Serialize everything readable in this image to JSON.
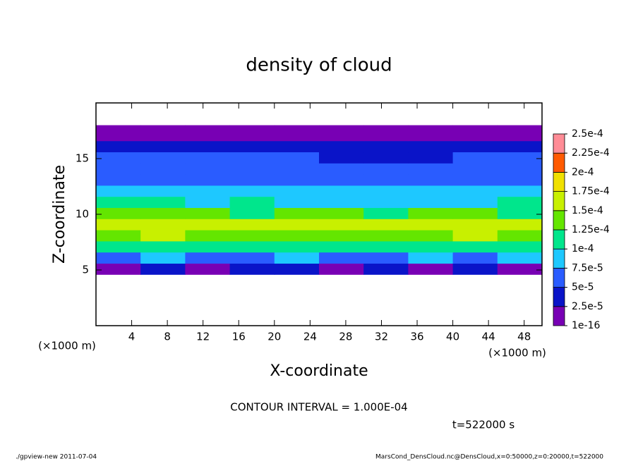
{
  "chart_data": {
    "type": "heatmap",
    "title": "density of cloud",
    "x_label": "X-coordinate",
    "y_label": "Z-coordinate",
    "x_unit_left": "(×1000 m)",
    "x_unit_right": "(×1000 m)",
    "contour_note": "CONTOUR INTERVAL = 1.000E-04",
    "time_note": "t=522000 s",
    "footer_left": "./gpview-new  2011-07-04",
    "footer_right": "MarsCond_DensCloud.nc@DensCloud,x=0:50000,z=0:20000,t=522000",
    "xlim": [
      0,
      50
    ],
    "ylim": [
      0,
      20
    ],
    "xticks": [
      4,
      8,
      12,
      16,
      20,
      24,
      28,
      32,
      36,
      40,
      44,
      48
    ],
    "yticks": [
      5,
      10,
      15
    ],
    "x_edges": [
      0,
      5,
      10,
      15,
      20,
      25,
      30,
      35,
      40,
      45,
      50
    ],
    "y_edges": [
      4.6,
      5.6,
      6.6,
      7.6,
      8.6,
      9.6,
      10.6,
      11.6,
      12.6,
      13.6,
      14.6,
      15.6,
      16.6,
      18
    ],
    "values": [
      [
        2e-05,
        3e-05,
        2e-05,
        3e-05,
        3e-05,
        2e-05,
        3e-05,
        2e-05,
        3e-05,
        2e-05
      ],
      [
        7e-05,
        8e-05,
        6e-05,
        7e-05,
        8e-05,
        7e-05,
        6e-05,
        8e-05,
        7e-05,
        8e-05
      ],
      [
        0.00011,
        0.00012,
        0.00011,
        0.0001,
        0.00011,
        0.00012,
        0.00011,
        0.0001,
        0.00011,
        0.00012
      ],
      [
        0.00014,
        0.00015,
        0.00014,
        0.00013,
        0.00014,
        0.00014,
        0.00013,
        0.00014,
        0.00015,
        0.00013
      ],
      [
        0.00016,
        0.00017,
        0.00016,
        0.00015,
        0.00015,
        0.00015,
        0.00015,
        0.00016,
        0.00017,
        0.00015
      ],
      [
        0.00013,
        0.00014,
        0.00013,
        0.00012,
        0.00013,
        0.00013,
        0.00012,
        0.00013,
        0.00013,
        0.00012
      ],
      [
        0.0001,
        0.000105,
        9e-05,
        0.0001,
        9e-05,
        8.5e-05,
        9e-05,
        9e-05,
        9.5e-05,
        0.0001
      ],
      [
        8.5e-05,
        8e-05,
        8e-05,
        8e-05,
        9e-05,
        8e-05,
        8e-05,
        8e-05,
        8e-05,
        8.5e-05
      ],
      [
        7e-05,
        7e-05,
        7e-05,
        6e-05,
        7e-05,
        6e-05,
        6e-05,
        6e-05,
        7e-05,
        7e-05
      ],
      [
        6e-05,
        6e-05,
        6e-05,
        5e-05,
        6e-05,
        5e-05,
        5e-05,
        5e-05,
        6e-05,
        6e-05
      ],
      [
        5e-05,
        6e-05,
        5e-05,
        5e-05,
        5e-05,
        4e-05,
        4e-05,
        4e-05,
        5e-05,
        5e-05
      ],
      [
        3e-05,
        3e-05,
        3e-05,
        3e-05,
        3e-05,
        3e-05,
        3e-05,
        3e-05,
        3e-05,
        3e-05
      ],
      [
        1e-05,
        1e-05,
        1e-05,
        1e-05,
        1e-05,
        1e-05,
        1e-05,
        1e-05,
        1e-05,
        1e-05
      ]
    ],
    "colorbar_ticks": [
      {
        "value": 1e-16,
        "label": "1e-16"
      },
      {
        "value": 2.5e-05,
        "label": "2.5e-5"
      },
      {
        "value": 5e-05,
        "label": "5e-5"
      },
      {
        "value": 7.5e-05,
        "label": "7.5e-5"
      },
      {
        "value": 0.0001,
        "label": "1e-4"
      },
      {
        "value": 0.000125,
        "label": "1.25e-4"
      },
      {
        "value": 0.00015,
        "label": "1.5e-4"
      },
      {
        "value": 0.000175,
        "label": "1.75e-4"
      },
      {
        "value": 0.0002,
        "label": "2e-4"
      },
      {
        "value": 0.000225,
        "label": "2.25e-4"
      },
      {
        "value": 0.00025,
        "label": "2.5e-4"
      }
    ],
    "colors": [
      "#7800b4",
      "#0a14c8",
      "#2a5cff",
      "#1ec8ff",
      "#00e68c",
      "#64e600",
      "#c8f000",
      "#f0e000",
      "#ff5a00",
      "#ff8c96"
    ]
  }
}
